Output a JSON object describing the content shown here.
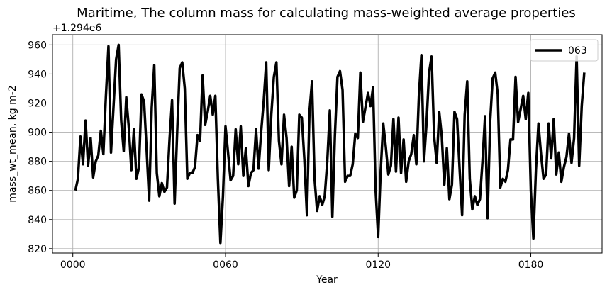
{
  "chart_data": {
    "type": "line",
    "title": "Maritime, The column mass for calculating mass-weighted average properties",
    "xlabel": "Year",
    "ylabel": "mass_wt_mean, kg m-2",
    "y_offset_label": "+1.294e6",
    "xlim": [
      -8,
      208
    ],
    "ylim": [
      817,
      967
    ],
    "x_ticks": [
      {
        "value": 0,
        "label": "0000"
      },
      {
        "value": 60,
        "label": "0060"
      },
      {
        "value": 120,
        "label": "0120"
      },
      {
        "value": 180,
        "label": "0180"
      }
    ],
    "y_ticks": [
      {
        "value": 820,
        "label": "820"
      },
      {
        "value": 840,
        "label": "840"
      },
      {
        "value": 860,
        "label": "860"
      },
      {
        "value": 880,
        "label": "880"
      },
      {
        "value": 900,
        "label": "900"
      },
      {
        "value": 920,
        "label": "920"
      },
      {
        "value": 940,
        "label": "940"
      },
      {
        "value": 960,
        "label": "960"
      }
    ],
    "grid": true,
    "legend_position": "top-right",
    "series": [
      {
        "name": "063",
        "color": "#000000",
        "x_start": 1,
        "x_step": 1,
        "values": [
          860,
          868,
          897,
          878,
          908,
          877,
          896,
          869,
          880,
          884,
          901,
          885,
          925,
          959,
          886,
          918,
          950,
          960,
          908,
          887,
          924,
          903,
          874,
          902,
          868,
          876,
          926,
          921,
          888,
          853,
          917,
          946,
          872,
          856,
          865,
          859,
          862,
          895,
          922,
          851,
          900,
          944,
          948,
          930,
          868,
          872,
          872,
          876,
          898,
          894,
          939,
          905,
          914,
          925,
          912,
          925,
          868,
          824,
          856,
          904,
          886,
          867,
          870,
          902,
          878,
          904,
          870,
          889,
          863,
          872,
          874,
          902,
          875,
          900,
          921,
          948,
          874,
          912,
          938,
          948,
          894,
          878,
          912,
          896,
          863,
          890,
          855,
          860,
          912,
          910,
          881,
          843,
          914,
          935,
          868,
          846,
          856,
          850,
          856,
          880,
          915,
          842,
          898,
          938,
          942,
          929,
          866,
          870,
          870,
          878,
          899,
          896,
          941,
          907,
          917,
          927,
          918,
          931,
          860,
          828,
          874,
          906,
          890,
          871,
          877,
          909,
          873,
          910,
          872,
          895,
          866,
          880,
          885,
          898,
          878,
          925,
          953,
          880,
          906,
          941,
          952,
          897,
          879,
          914,
          897,
          864,
          889,
          854,
          864,
          914,
          909,
          875,
          843,
          912,
          935,
          868,
          847,
          856,
          850,
          854,
          880,
          911,
          841,
          907,
          937,
          941,
          926,
          862,
          868,
          866,
          874,
          895,
          895,
          938,
          907,
          916,
          925,
          909,
          927,
          860,
          827,
          874,
          906,
          885,
          868,
          871,
          906,
          882,
          909,
          871,
          886,
          866,
          876,
          883,
          899,
          879,
          896,
          952,
          877,
          918,
          941
        ]
      }
    ]
  }
}
